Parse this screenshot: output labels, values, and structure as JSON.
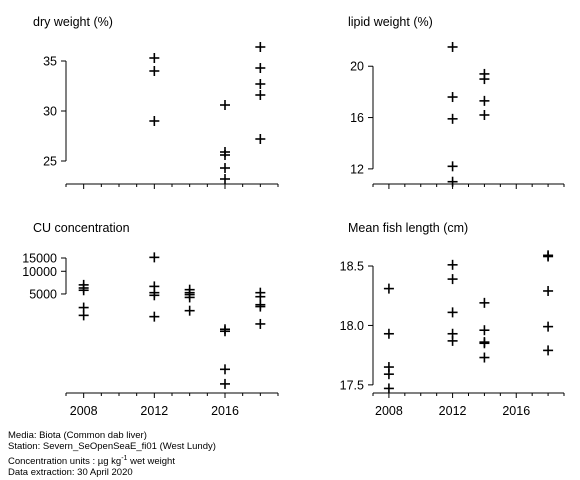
{
  "chart_data": [
    {
      "type": "scatter",
      "title": "dry weight (%)",
      "xlim": [
        2007,
        2019
      ],
      "ylim": [
        22.8,
        37.3
      ],
      "xticks": [
        2008,
        2012,
        2016
      ],
      "xtick_labels": [
        "",
        "",
        ""
      ],
      "yticks": [
        25,
        30,
        35
      ],
      "ytick_labels": [
        "25",
        "30",
        "35"
      ],
      "points": [
        {
          "x": 2012,
          "y": 35.3
        },
        {
          "x": 2012,
          "y": 34.0
        },
        {
          "x": 2012,
          "y": 29.0
        },
        {
          "x": 2016,
          "y": 30.6
        },
        {
          "x": 2016,
          "y": 25.9
        },
        {
          "x": 2016,
          "y": 25.6
        },
        {
          "x": 2016,
          "y": 24.3
        },
        {
          "x": 2016,
          "y": 23.2
        },
        {
          "x": 2018,
          "y": 36.4
        },
        {
          "x": 2018,
          "y": 34.3
        },
        {
          "x": 2018,
          "y": 32.7
        },
        {
          "x": 2018,
          "y": 31.6
        },
        {
          "x": 2018,
          "y": 27.2
        }
      ]
    },
    {
      "type": "scatter",
      "title": "lipid weight (%)",
      "xlim": [
        2007,
        2019
      ],
      "ylim": [
        10.9,
        22.2
      ],
      "xticks": [
        2008,
        2012,
        2016
      ],
      "xtick_labels": [
        "",
        "",
        ""
      ],
      "yticks": [
        12,
        16,
        20
      ],
      "ytick_labels": [
        "12",
        "16",
        "20"
      ],
      "points": [
        {
          "x": 2012,
          "y": 21.5
        },
        {
          "x": 2012,
          "y": 17.6
        },
        {
          "x": 2012,
          "y": 15.9
        },
        {
          "x": 2012,
          "y": 12.2
        },
        {
          "x": 2012,
          "y": 11.0
        },
        {
          "x": 2014,
          "y": 19.4
        },
        {
          "x": 2014,
          "y": 19.0
        },
        {
          "x": 2014,
          "y": 17.3
        },
        {
          "x": 2014,
          "y": 16.2
        }
      ]
    },
    {
      "type": "scatter",
      "title": "CU concentration",
      "xlim": [
        2007,
        2019
      ],
      "y_scale": "log",
      "ylim": [
        250,
        21000
      ],
      "xticks": [
        2008,
        2012,
        2016
      ],
      "xtick_labels": [
        "2008",
        "2012",
        "2016"
      ],
      "yticks": [
        5000,
        10000,
        15000
      ],
      "ytick_labels": [
        "5000",
        "10000",
        "15000"
      ],
      "points": [
        {
          "x": 2008,
          "y": 6600
        },
        {
          "x": 2008,
          "y": 6000
        },
        {
          "x": 2008,
          "y": 5600
        },
        {
          "x": 2008,
          "y": 3300
        },
        {
          "x": 2008,
          "y": 2600
        },
        {
          "x": 2012,
          "y": 15300
        },
        {
          "x": 2012,
          "y": 6300
        },
        {
          "x": 2012,
          "y": 5200
        },
        {
          "x": 2012,
          "y": 4800
        },
        {
          "x": 2012,
          "y": 2500
        },
        {
          "x": 2014,
          "y": 5700
        },
        {
          "x": 2014,
          "y": 5200
        },
        {
          "x": 2014,
          "y": 4900
        },
        {
          "x": 2014,
          "y": 4500
        },
        {
          "x": 2014,
          "y": 3000
        },
        {
          "x": 2016,
          "y": 1700
        },
        {
          "x": 2016,
          "y": 1600
        },
        {
          "x": 2016,
          "y": 500
        },
        {
          "x": 2016,
          "y": 320
        },
        {
          "x": 2018,
          "y": 5200
        },
        {
          "x": 2018,
          "y": 4600
        },
        {
          "x": 2018,
          "y": 3600
        },
        {
          "x": 2018,
          "y": 3400
        },
        {
          "x": 2018,
          "y": 2000
        }
      ]
    },
    {
      "type": "scatter",
      "title": "Mean fish length (cm)",
      "xlim": [
        2007,
        2019
      ],
      "ylim": [
        17.44,
        18.66
      ],
      "xticks": [
        2008,
        2012,
        2016
      ],
      "xtick_labels": [
        "2008",
        "2012",
        "2016"
      ],
      "yticks": [
        17.5,
        18.0,
        18.5
      ],
      "ytick_labels": [
        "17.5",
        "18.0",
        "18.5"
      ],
      "points": [
        {
          "x": 2008,
          "y": 18.31
        },
        {
          "x": 2008,
          "y": 17.93
        },
        {
          "x": 2008,
          "y": 17.65
        },
        {
          "x": 2008,
          "y": 17.59
        },
        {
          "x": 2008,
          "y": 17.47
        },
        {
          "x": 2012,
          "y": 18.51
        },
        {
          "x": 2012,
          "y": 18.39
        },
        {
          "x": 2012,
          "y": 18.11
        },
        {
          "x": 2012,
          "y": 17.93
        },
        {
          "x": 2012,
          "y": 17.87
        },
        {
          "x": 2014,
          "y": 18.19
        },
        {
          "x": 2014,
          "y": 17.96
        },
        {
          "x": 2014,
          "y": 17.86
        },
        {
          "x": 2014,
          "y": 17.85
        },
        {
          "x": 2014,
          "y": 17.73
        },
        {
          "x": 2018,
          "y": 18.59
        },
        {
          "x": 2018,
          "y": 18.58
        },
        {
          "x": 2018,
          "y": 18.29
        },
        {
          "x": 2018,
          "y": 17.99
        },
        {
          "x": 2018,
          "y": 17.79
        }
      ]
    }
  ],
  "footer": {
    "media": "Media: Biota (Common dab liver)",
    "station": "Station: Severn_SeOpenSeaE_fi01 (West Lundy)",
    "units_prefix": "Concentration units : ",
    "units_mu": "µg kg",
    "units_sup": "-1",
    "units_suffix": " wet weight",
    "extraction": "Data extraction: 30 April 2020"
  }
}
